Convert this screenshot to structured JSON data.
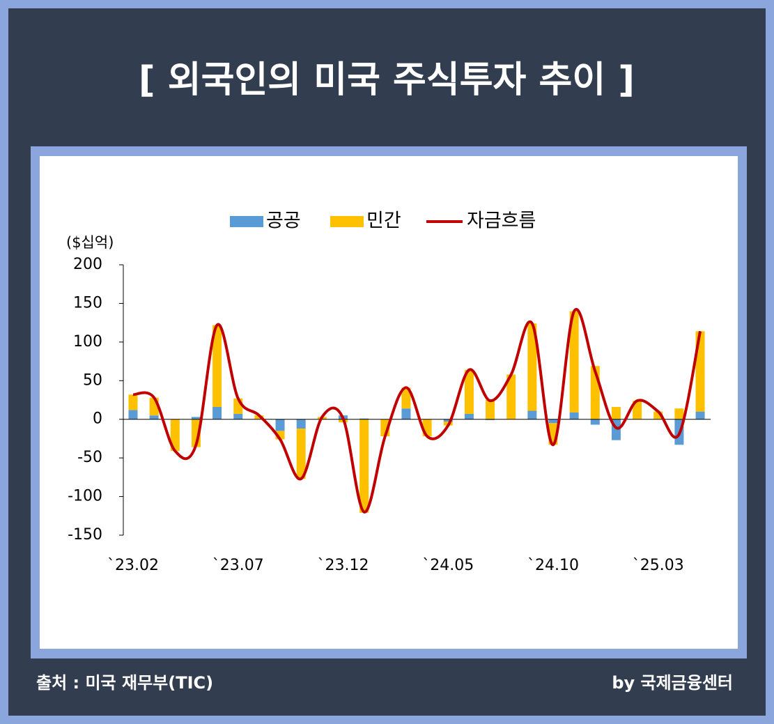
{
  "chart_data": {
    "type": "bar",
    "title": "[ 외국인의 미국 주식투자 추이 ]",
    "y_label": "($십억)",
    "source": "출처 : 미국 재무부(TIC)",
    "credit": "by 국제금융센터",
    "categories": [
      "`23.02",
      null,
      null,
      null,
      null,
      "`23.07",
      null,
      null,
      null,
      null,
      "`23.12",
      null,
      null,
      null,
      null,
      "`24.05",
      null,
      null,
      null,
      null,
      "`24.10",
      null,
      null,
      null,
      null,
      "`25.03",
      null,
      null
    ],
    "series": [
      {
        "name": "공공",
        "color": "#5b9bd5",
        "type": "bar",
        "values": [
          12,
          5,
          0,
          3,
          16,
          7,
          0,
          -15,
          -12,
          0,
          5,
          1,
          0,
          14,
          0,
          -3,
          7,
          -1,
          0,
          11,
          -5,
          9,
          -7,
          -27,
          0,
          0,
          -33,
          10
        ]
      },
      {
        "name": "민간",
        "color": "#ffc000",
        "type": "bar",
        "values": [
          20,
          23,
          -41,
          -36,
          106,
          20,
          5,
          -11,
          -65,
          3,
          -4,
          -121,
          -22,
          27,
          -22,
          -5,
          57,
          25,
          58,
          113,
          -28,
          131,
          69,
          16,
          24,
          10,
          14,
          104
        ]
      },
      {
        "name": "자금흐름",
        "color": "#c00000",
        "type": "line",
        "values": [
          32,
          28,
          -41,
          -33,
          122,
          27,
          5,
          -26,
          -77,
          3,
          1,
          -120,
          -22,
          41,
          -22,
          -8,
          64,
          24,
          58,
          124,
          -33,
          140,
          62,
          -11,
          24,
          10,
          -19,
          114
        ]
      }
    ],
    "ylim": [
      -150,
      200
    ],
    "yticks": [
      -150,
      -100,
      -50,
      0,
      50,
      100,
      150,
      200
    ],
    "grid": false
  }
}
